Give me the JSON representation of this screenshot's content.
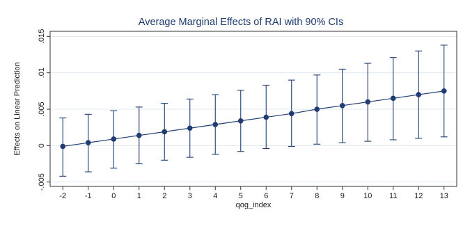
{
  "chart_data": {
    "type": "scatter",
    "title": "Average Marginal Effects of RAI with 90% CIs",
    "xlabel": "qog_index",
    "ylabel": "Effects on Linear Prediction",
    "x": [
      -2,
      -1,
      0,
      1,
      2,
      3,
      4,
      5,
      6,
      7,
      8,
      9,
      10,
      11,
      12,
      13
    ],
    "y": [
      -0.0001,
      0.0004,
      0.0009,
      0.0014,
      0.0019,
      0.0024,
      0.0029,
      0.0034,
      0.0039,
      0.0044,
      0.005,
      0.0055,
      0.006,
      0.0065,
      0.007,
      0.0075
    ],
    "ci_lower": [
      -0.0042,
      -0.0036,
      -0.0031,
      -0.0025,
      -0.002,
      -0.0016,
      -0.0012,
      -0.0008,
      -0.0004,
      -0.0001,
      0.0002,
      0.0004,
      0.0006,
      0.0008,
      0.001,
      0.0012
    ],
    "ci_upper": [
      0.0038,
      0.0043,
      0.0048,
      0.0053,
      0.0058,
      0.0064,
      0.007,
      0.0076,
      0.0083,
      0.009,
      0.0097,
      0.0105,
      0.0113,
      0.0121,
      0.013,
      0.0138
    ],
    "xticks": [
      "-2",
      "-1",
      "0",
      "1",
      "2",
      "3",
      "4",
      "5",
      "6",
      "7",
      "8",
      "9",
      "10",
      "11",
      "12",
      "13"
    ],
    "yticks": [
      {
        "value": -0.005,
        "label": "-.005"
      },
      {
        "value": 0,
        "label": "0"
      },
      {
        "value": 0.005,
        "label": ".005"
      },
      {
        "value": 0.01,
        "label": ".01"
      },
      {
        "value": 0.015,
        "label": ".015"
      }
    ],
    "xlim": [
      -2.5,
      13.5
    ],
    "ylim": [
      -0.0056,
      0.0157
    ],
    "grid": true,
    "colors": {
      "series": "#1f3d72",
      "grid": "#e1e8ee",
      "frame": "#333333",
      "title": "#1c3a6e"
    }
  }
}
